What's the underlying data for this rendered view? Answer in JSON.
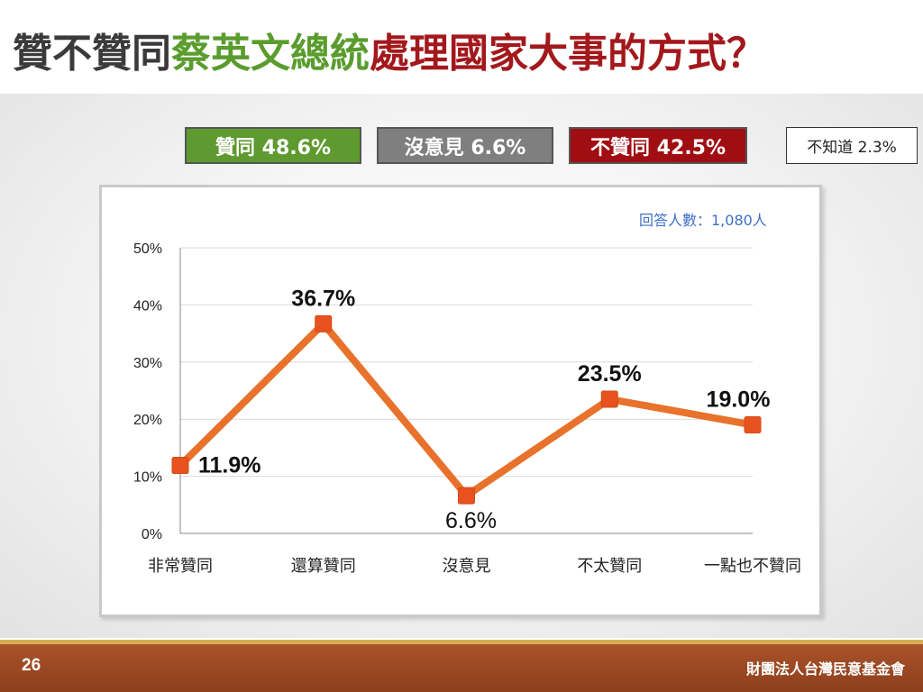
{
  "title": {
    "segments": [
      {
        "text": "贊不贊同",
        "color": "#3a3a3a"
      },
      {
        "text": "蔡英文總統",
        "color": "#5a9c2e"
      },
      {
        "text": "處理國家大事的方式？",
        "color": "#a3181c"
      }
    ]
  },
  "summary": {
    "agree": {
      "label": "贊同 48.6%",
      "color": "#5e9a2f"
    },
    "no_opinion": {
      "label": "沒意見 6.6%",
      "color": "#7f7f7f"
    },
    "disagree": {
      "label": "不贊同 42.5%",
      "color": "#a00d12"
    },
    "dont_know": {
      "label": "不知道 2.3%"
    }
  },
  "respondents": "回答人數：1,080人",
  "chart_data": {
    "type": "line",
    "categories": [
      "非常贊同",
      "還算贊同",
      "沒意見",
      "不太贊同",
      "一點也不贊同"
    ],
    "values": [
      11.9,
      36.7,
      6.6,
      23.5,
      19.0
    ],
    "value_labels": [
      "11.9%",
      "36.7%",
      "6.6%",
      "23.5%",
      "19.0%"
    ],
    "y_ticks": [
      "0%",
      "10%",
      "20%",
      "30%",
      "40%",
      "50%"
    ],
    "ylim": [
      0,
      50
    ],
    "grid": true,
    "line_color": "#e8722b",
    "marker_color": "#e8521f"
  },
  "footer": {
    "page_number": "26",
    "organization": "財團法人台灣民意基金會"
  }
}
